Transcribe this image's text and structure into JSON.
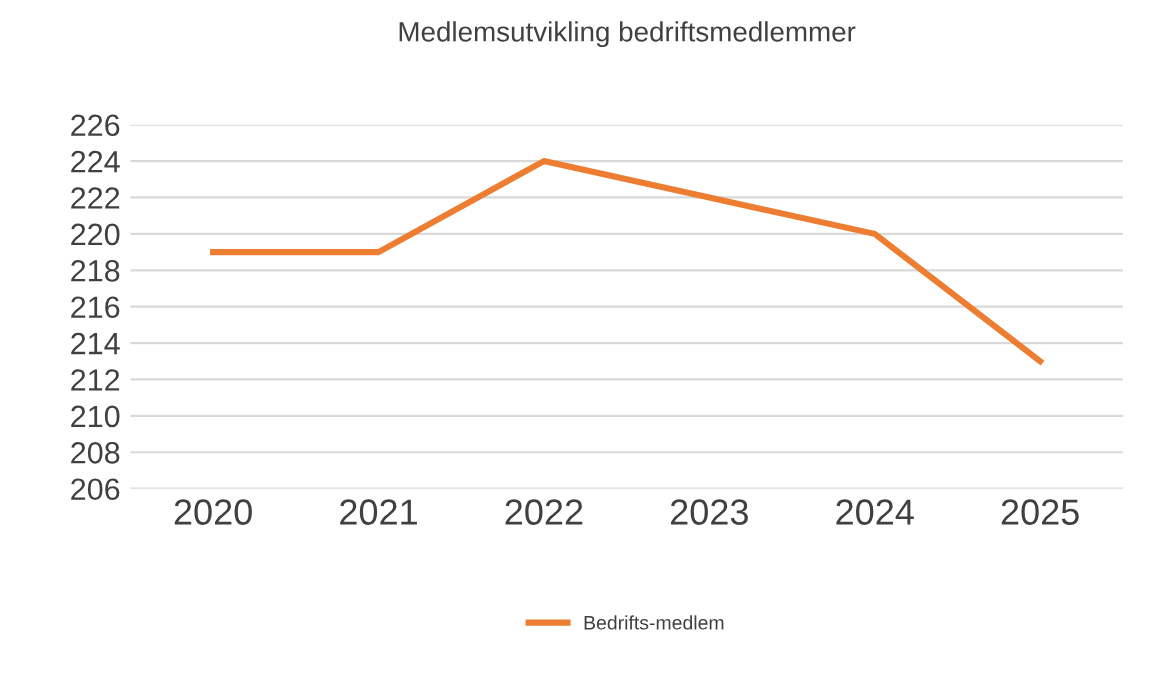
{
  "chart_data": {
    "type": "line",
    "title": "Medlemsutvikling bedriftsmedlemmer",
    "categories": [
      "2020",
      "2021",
      "2022",
      "2023",
      "2024",
      "2025"
    ],
    "series": [
      {
        "name": "Bedrifts-medlem",
        "color": "#ed7d31",
        "values": [
          219,
          219,
          224,
          222,
          220,
          213
        ]
      }
    ],
    "ylim": [
      206,
      226
    ],
    "yticks": [
      206,
      208,
      210,
      212,
      214,
      216,
      218,
      220,
      222,
      224,
      226
    ],
    "grid": "y",
    "legend": "bottom",
    "marker": "none",
    "line_style": "solid"
  }
}
